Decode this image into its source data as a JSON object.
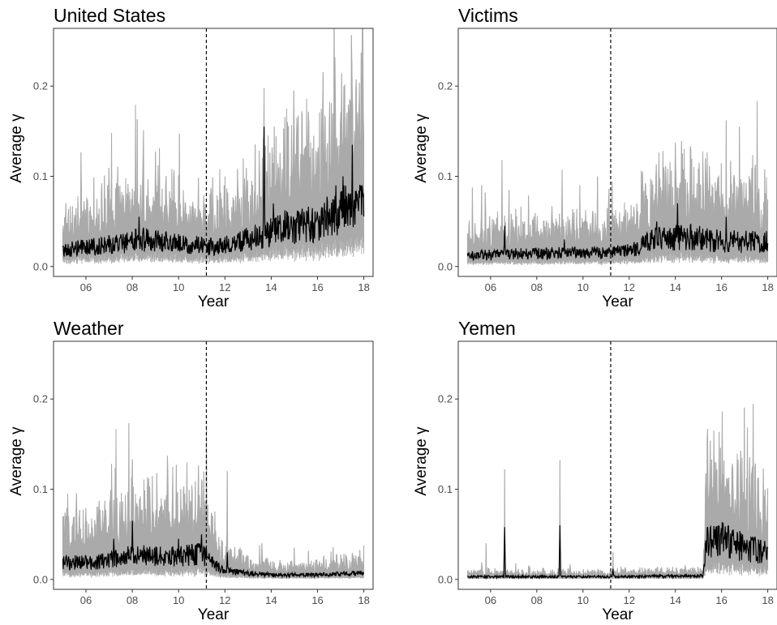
{
  "chart_data": [
    {
      "type": "line",
      "title": "United States",
      "xlabel": "Year",
      "ylabel": "Average γ",
      "xlim": [
        2004.6,
        2018.4
      ],
      "ylim": [
        -0.011,
        0.264
      ],
      "x_ticks": [
        6,
        8,
        10,
        12,
        14,
        16,
        18
      ],
      "x_tick_labels": [
        "06",
        "08",
        "10",
        "12",
        "14",
        "16",
        "18"
      ],
      "y_ticks": [
        0.0,
        0.1,
        0.2
      ],
      "y_tick_labels": [
        "0.0",
        "0.1",
        "0.2"
      ],
      "vline_x": 2011.2,
      "x_range": [
        2005.0,
        2018.0
      ],
      "grid": false,
      "legend": "none",
      "series": [
        {
          "role": "mean",
          "color": "#000000",
          "knots": [
            [
              2005.0,
              0.018
            ],
            [
              2007.0,
              0.024
            ],
            [
              2008.5,
              0.03
            ],
            [
              2010.0,
              0.025
            ],
            [
              2011.5,
              0.022
            ],
            [
              2013.0,
              0.03
            ],
            [
              2014.5,
              0.043
            ],
            [
              2016.0,
              0.048
            ],
            [
              2017.0,
              0.062
            ],
            [
              2018.0,
              0.065
            ]
          ],
          "spikes": [
            [
              2013.7,
              0.155
            ],
            [
              2017.5,
              0.135
            ],
            [
              2017.1,
              0.1
            ],
            [
              2014.1,
              0.07
            ],
            [
              2008.3,
              0.055
            ],
            [
              2016.8,
              0.09
            ]
          ]
        },
        {
          "role": "interval",
          "color": "#aaaaaa",
          "upper_ratio": 2.1,
          "lower_ratio": 0.35,
          "spikes": [
            [
              2013.7,
              0.198
            ],
            [
              2017.5,
              0.193
            ],
            [
              2007.1,
              0.148
            ],
            [
              2014.7,
              0.15
            ],
            [
              2017.8,
              0.17
            ],
            [
              2016.5,
              0.16
            ],
            [
              2015.1,
              0.165
            ],
            [
              2012.0,
              0.1
            ]
          ]
        }
      ]
    },
    {
      "type": "line",
      "title": "Victims",
      "xlabel": "Year",
      "ylabel": "Average γ",
      "xlim": [
        2004.6,
        2018.4
      ],
      "ylim": [
        -0.011,
        0.264
      ],
      "x_ticks": [
        6,
        8,
        10,
        12,
        14,
        16,
        18
      ],
      "x_tick_labels": [
        "06",
        "08",
        "10",
        "12",
        "14",
        "16",
        "18"
      ],
      "y_ticks": [
        0.0,
        0.1,
        0.2
      ],
      "y_tick_labels": [
        "0.0",
        "0.1",
        "0.2"
      ],
      "vline_x": 2011.2,
      "x_range": [
        2005.0,
        2018.0
      ],
      "grid": false,
      "legend": "none",
      "series": [
        {
          "role": "mean",
          "color": "#000000",
          "knots": [
            [
              2005.0,
              0.012
            ],
            [
              2007.0,
              0.014
            ],
            [
              2009.0,
              0.015
            ],
            [
              2011.0,
              0.015
            ],
            [
              2012.3,
              0.02
            ],
            [
              2013.0,
              0.03
            ],
            [
              2014.5,
              0.033
            ],
            [
              2016.0,
              0.028
            ],
            [
              2018.0,
              0.027
            ]
          ],
          "spikes": [
            [
              2006.6,
              0.045
            ],
            [
              2014.1,
              0.07
            ],
            [
              2016.2,
              0.055
            ],
            [
              2013.2,
              0.05
            ],
            [
              2009.2,
              0.03
            ]
          ]
        },
        {
          "role": "interval",
          "color": "#aaaaaa",
          "upper_ratio": 2.2,
          "lower_ratio": 0.3,
          "spikes": [
            [
              2006.5,
              0.118
            ],
            [
              2016.2,
              0.162
            ],
            [
              2014.0,
              0.137
            ],
            [
              2013.5,
              0.11
            ],
            [
              2015.3,
              0.12
            ],
            [
              2017.2,
              0.1
            ],
            [
              2011.1,
              0.072
            ]
          ]
        }
      ]
    },
    {
      "type": "line",
      "title": "Weather",
      "xlabel": "Year",
      "ylabel": "Average γ",
      "xlim": [
        2004.6,
        2018.4
      ],
      "ylim": [
        -0.011,
        0.264
      ],
      "x_ticks": [
        6,
        8,
        10,
        12,
        14,
        16,
        18
      ],
      "x_tick_labels": [
        "06",
        "08",
        "10",
        "12",
        "14",
        "16",
        "18"
      ],
      "y_ticks": [
        0.0,
        0.1,
        0.2
      ],
      "y_tick_labels": [
        "0.0",
        "0.1",
        "0.2"
      ],
      "vline_x": 2011.2,
      "x_range": [
        2005.0,
        2018.0
      ],
      "grid": false,
      "legend": "none",
      "series": [
        {
          "role": "mean",
          "color": "#000000",
          "knots": [
            [
              2005.0,
              0.018
            ],
            [
              2006.5,
              0.02
            ],
            [
              2008.0,
              0.027
            ],
            [
              2009.5,
              0.025
            ],
            [
              2011.0,
              0.028
            ],
            [
              2011.8,
              0.012
            ],
            [
              2012.5,
              0.008
            ],
            [
              2014.0,
              0.005
            ],
            [
              2016.0,
              0.005
            ],
            [
              2018.0,
              0.007
            ]
          ],
          "spikes": [
            [
              2008.0,
              0.065
            ],
            [
              2011.0,
              0.05
            ],
            [
              2012.1,
              0.03
            ],
            [
              2010.0,
              0.045
            ],
            [
              2007.2,
              0.045
            ]
          ]
        },
        {
          "role": "interval",
          "color": "#aaaaaa",
          "upper_ratio": 2.3,
          "lower_ratio": 0.3,
          "spikes": [
            [
              2007.1,
              0.128
            ],
            [
              2008.0,
              0.133
            ],
            [
              2009.9,
              0.127
            ],
            [
              2011.0,
              0.11
            ],
            [
              2012.1,
              0.12
            ],
            [
              2005.1,
              0.074
            ],
            [
              2013.6,
              0.04
            ],
            [
              2015.0,
              0.035
            ]
          ]
        }
      ]
    },
    {
      "type": "line",
      "title": "Yemen",
      "xlabel": "Year",
      "ylabel": "Average γ",
      "xlim": [
        2004.6,
        2018.4
      ],
      "ylim": [
        -0.011,
        0.264
      ],
      "x_ticks": [
        6,
        8,
        10,
        12,
        14,
        16,
        18
      ],
      "x_tick_labels": [
        "06",
        "08",
        "10",
        "12",
        "14",
        "16",
        "18"
      ],
      "y_ticks": [
        0.0,
        0.1,
        0.2
      ],
      "y_tick_labels": [
        "0.0",
        "0.1",
        "0.2"
      ],
      "vline_x": 2011.2,
      "x_range": [
        2005.0,
        2018.0
      ],
      "grid": false,
      "legend": "none",
      "series": [
        {
          "role": "mean",
          "color": "#000000",
          "knots": [
            [
              2005.0,
              0.003
            ],
            [
              2011.0,
              0.003
            ],
            [
              2015.2,
              0.004
            ],
            [
              2015.35,
              0.04
            ],
            [
              2016.0,
              0.045
            ],
            [
              2017.0,
              0.035
            ],
            [
              2018.0,
              0.03
            ]
          ],
          "spikes": [
            [
              2006.6,
              0.058
            ],
            [
              2009.0,
              0.06
            ],
            [
              2011.3,
              0.012
            ],
            [
              2016.3,
              0.06
            ]
          ]
        },
        {
          "role": "interval",
          "color": "#aaaaaa",
          "upper_ratio": 2.0,
          "lower_ratio": 0.3,
          "spikes": [
            [
              2006.6,
              0.122
            ],
            [
              2009.0,
              0.132
            ],
            [
              2017.8,
              0.123
            ],
            [
              2016.0,
              0.09
            ],
            [
              2011.3,
              0.03
            ],
            [
              2005.8,
              0.04
            ]
          ]
        }
      ]
    }
  ]
}
